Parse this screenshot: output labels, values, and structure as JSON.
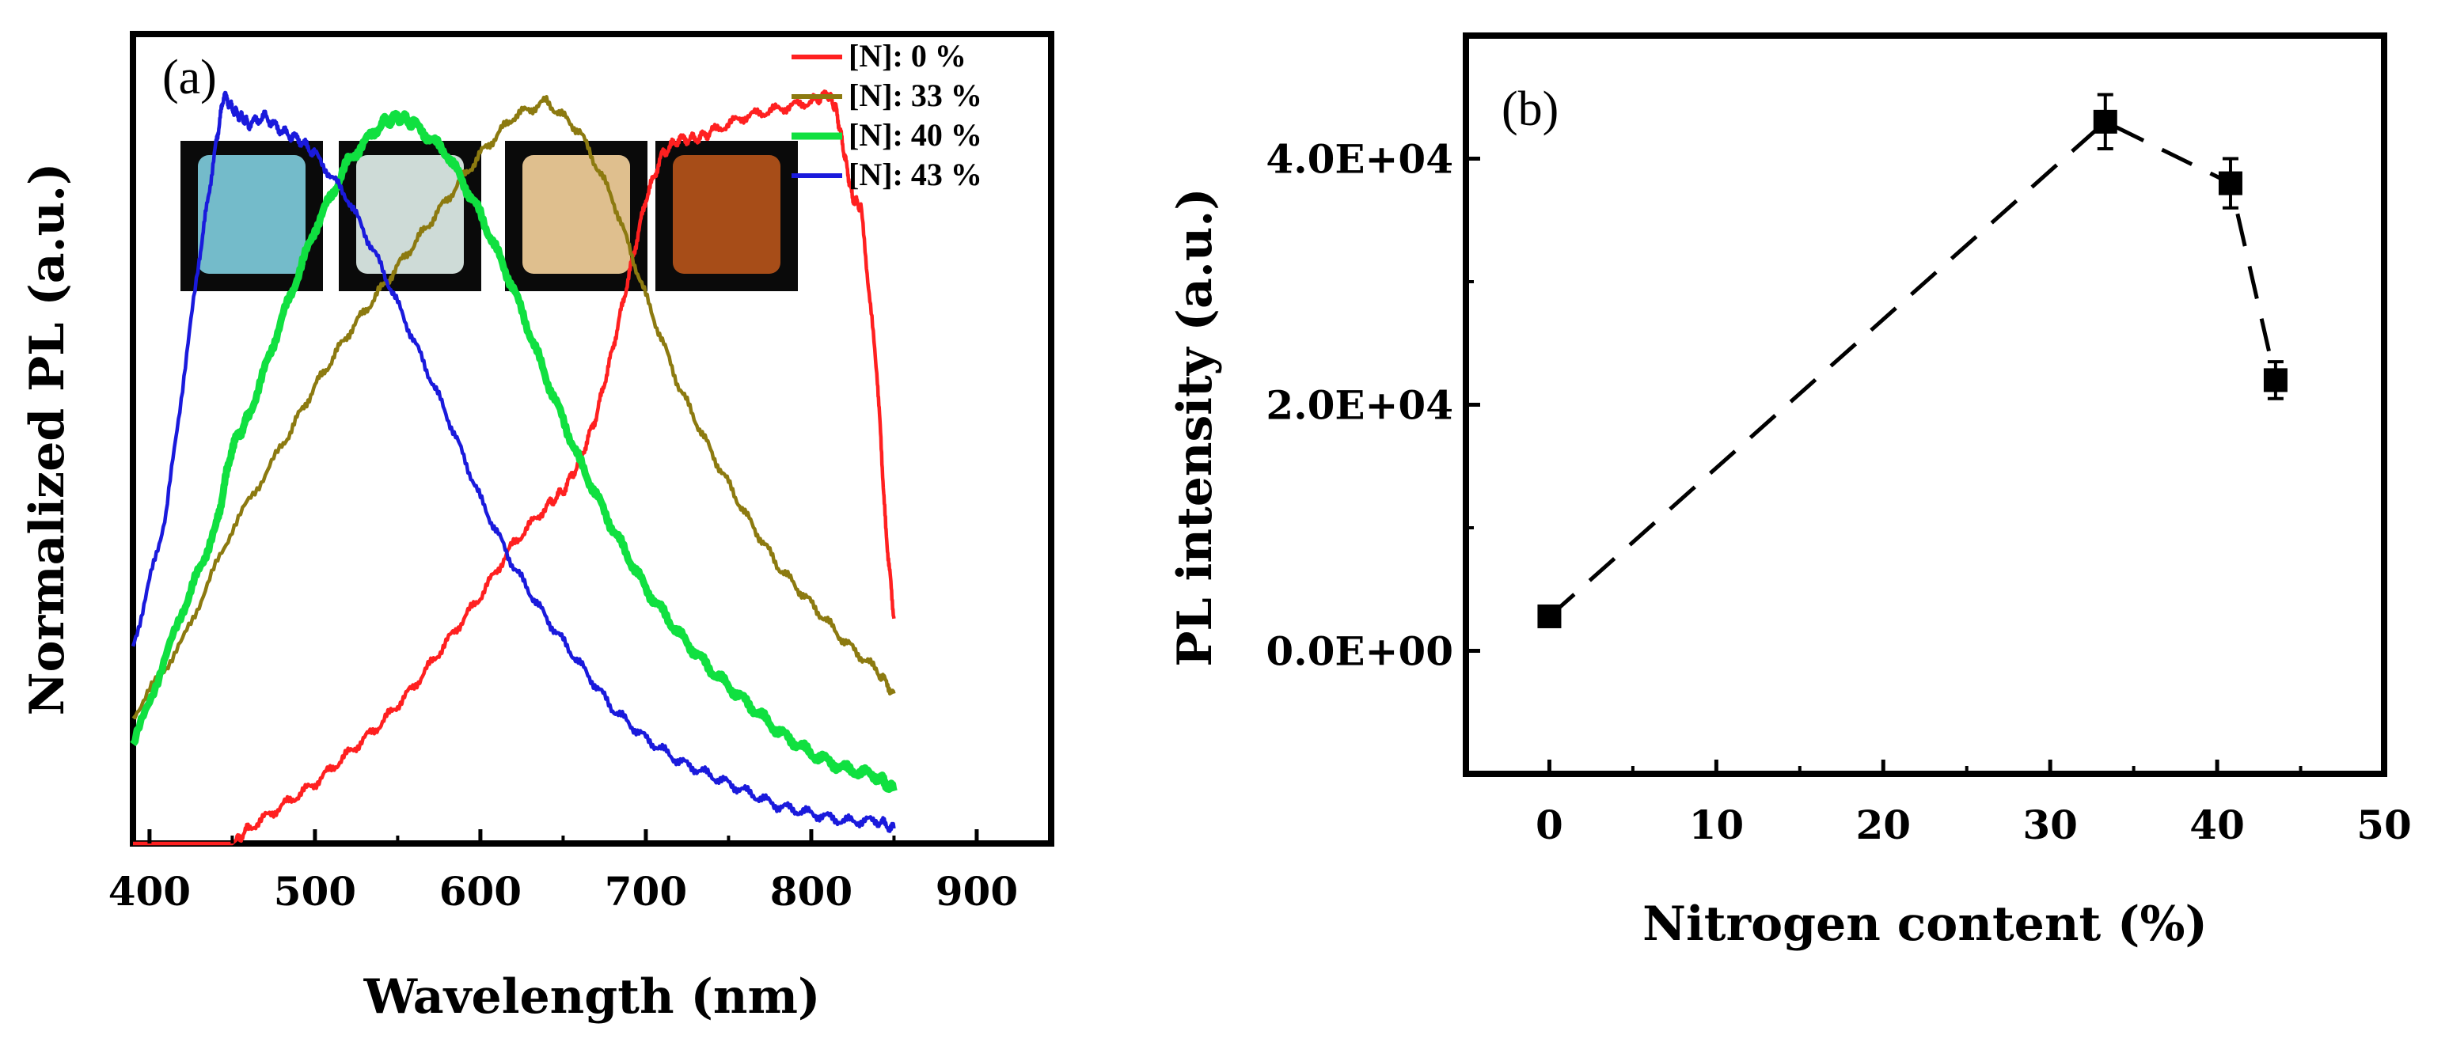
{
  "chart_data": [
    {
      "panel_label": "(a)",
      "type": "line",
      "xlabel": "Wavelength (nm)",
      "ylabel": "Normalized PL (a.u.)",
      "xlim": [
        390,
        945
      ],
      "ylim": [
        0,
        1.08
      ],
      "xticks": [
        400,
        500,
        600,
        700,
        800,
        900
      ],
      "show_y_ticklabels": false,
      "grid": false,
      "legend_position": "top-right",
      "series": [
        {
          "name": "[N]: 0  %",
          "color": "#ff2020",
          "x": [
            390,
            450,
            460,
            480,
            500,
            520,
            540,
            560,
            580,
            600,
            620,
            640,
            650,
            660,
            670,
            680,
            690,
            700,
            710,
            720,
            730,
            740,
            760,
            780,
            800,
            810,
            815,
            820,
            825,
            830,
            840,
            845,
            850
          ],
          "y": [
            0,
            0,
            0.02,
            0.05,
            0.08,
            0.12,
            0.16,
            0.21,
            0.27,
            0.33,
            0.4,
            0.45,
            0.47,
            0.51,
            0.57,
            0.66,
            0.76,
            0.86,
            0.92,
            0.94,
            0.94,
            0.95,
            0.97,
            0.98,
            0.99,
            1.0,
            0.98,
            0.92,
            0.86,
            0.85,
            0.62,
            0.42,
            0.3
          ]
        },
        {
          "name": "[N]: 33 %",
          "color": "#8c7a10",
          "x": [
            390,
            420,
            450,
            480,
            500,
            520,
            540,
            560,
            580,
            600,
            620,
            640,
            660,
            680,
            700,
            720,
            740,
            760,
            780,
            800,
            820,
            840,
            850
          ],
          "y": [
            0.17,
            0.27,
            0.42,
            0.53,
            0.61,
            0.68,
            0.74,
            0.8,
            0.86,
            0.92,
            0.97,
            0.99,
            0.95,
            0.86,
            0.73,
            0.61,
            0.52,
            0.44,
            0.37,
            0.32,
            0.27,
            0.23,
            0.2
          ]
        },
        {
          "name": "[N]: 40 %",
          "color": "#10e040",
          "x": [
            390,
            420,
            440,
            450,
            460,
            480,
            500,
            520,
            540,
            550,
            560,
            580,
            600,
            620,
            640,
            660,
            680,
            700,
            720,
            740,
            760,
            780,
            800,
            820,
            840,
            850
          ],
          "y": [
            0.13,
            0.31,
            0.42,
            0.53,
            0.57,
            0.7,
            0.82,
            0.91,
            0.96,
            0.97,
            0.96,
            0.92,
            0.84,
            0.74,
            0.62,
            0.51,
            0.42,
            0.34,
            0.28,
            0.23,
            0.19,
            0.15,
            0.12,
            0.1,
            0.09,
            0.07
          ]
        },
        {
          "name": "[N]: 43 %",
          "color": "#1a1adc",
          "x": [
            390,
            410,
            430,
            440,
            445,
            450,
            455,
            460,
            470,
            480,
            490,
            500,
            520,
            540,
            560,
            580,
            600,
            620,
            640,
            660,
            680,
            700,
            720,
            740,
            760,
            780,
            800,
            820,
            840,
            850
          ],
          "y": [
            0.26,
            0.44,
            0.78,
            0.93,
            1.0,
            0.98,
            0.97,
            0.96,
            0.97,
            0.95,
            0.94,
            0.92,
            0.86,
            0.77,
            0.67,
            0.57,
            0.46,
            0.37,
            0.3,
            0.24,
            0.18,
            0.14,
            0.11,
            0.09,
            0.07,
            0.05,
            0.04,
            0.03,
            0.03,
            0.02
          ]
        }
      ],
      "inset_photos": [
        {
          "name": "sample-0",
          "color": "#7ecbdb"
        },
        {
          "name": "sample-33",
          "color": "#dfeee9"
        },
        {
          "name": "sample-40",
          "color": "#f2cf9a"
        },
        {
          "name": "sample-43",
          "color": "#b5541a"
        }
      ]
    },
    {
      "panel_label": "(b)",
      "type": "scatter",
      "xlabel": "Nitrogen content (%)",
      "ylabel": "PL intensity (a.u.)",
      "xlim": [
        -5,
        50
      ],
      "ylim": [
        -10000,
        50000
      ],
      "xticks": [
        0,
        10,
        20,
        30,
        40,
        50
      ],
      "yticks": [
        0,
        20000,
        40000
      ],
      "ytick_labels": [
        "0.0E+00",
        "2.0E+04",
        "4.0E+04"
      ],
      "grid": false,
      "line_style": "dashed",
      "color": "#000000",
      "points": [
        {
          "x": 0,
          "y": 2800,
          "err": 700
        },
        {
          "x": 33.3,
          "y": 43000,
          "err": 2200
        },
        {
          "x": 40.8,
          "y": 38000,
          "err": 2000
        },
        {
          "x": 43.5,
          "y": 22000,
          "err": 1500
        }
      ]
    }
  ]
}
